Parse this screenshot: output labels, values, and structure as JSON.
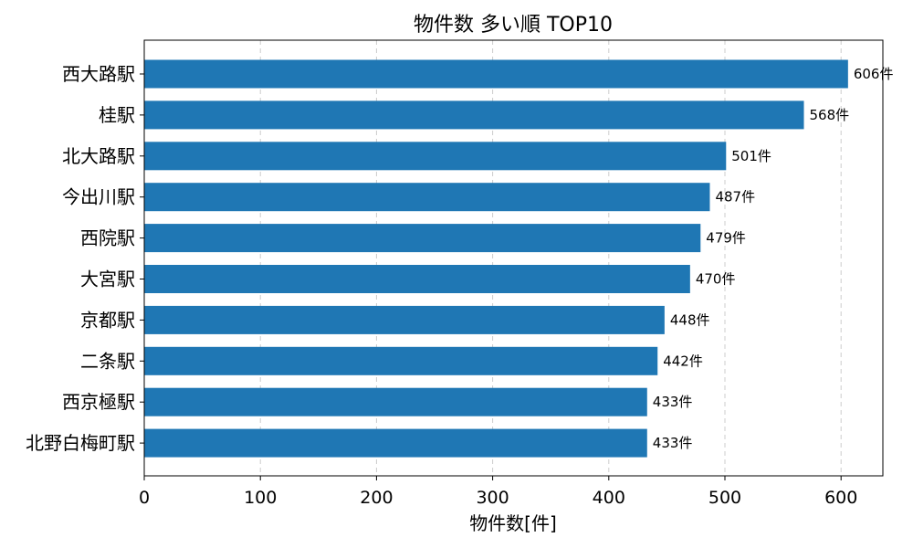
{
  "chart_data": {
    "type": "bar",
    "orientation": "horizontal",
    "title": "物件数 多い順 TOP10",
    "xlabel": "物件数[件]",
    "ylabel": "",
    "categories": [
      "西大路駅",
      "桂駅",
      "北大路駅",
      "今出川駅",
      "西院駅",
      "大宮駅",
      "京都駅",
      "二条駅",
      "西京極駅",
      "北野白梅町駅"
    ],
    "values": [
      606,
      568,
      501,
      487,
      479,
      470,
      448,
      442,
      433,
      433
    ],
    "value_suffix": "件",
    "xlim": [
      0,
      636
    ],
    "xticks": [
      0,
      100,
      200,
      300,
      400,
      500,
      600
    ],
    "grid": "x-dashed",
    "bar_color": "#1f77b4"
  }
}
